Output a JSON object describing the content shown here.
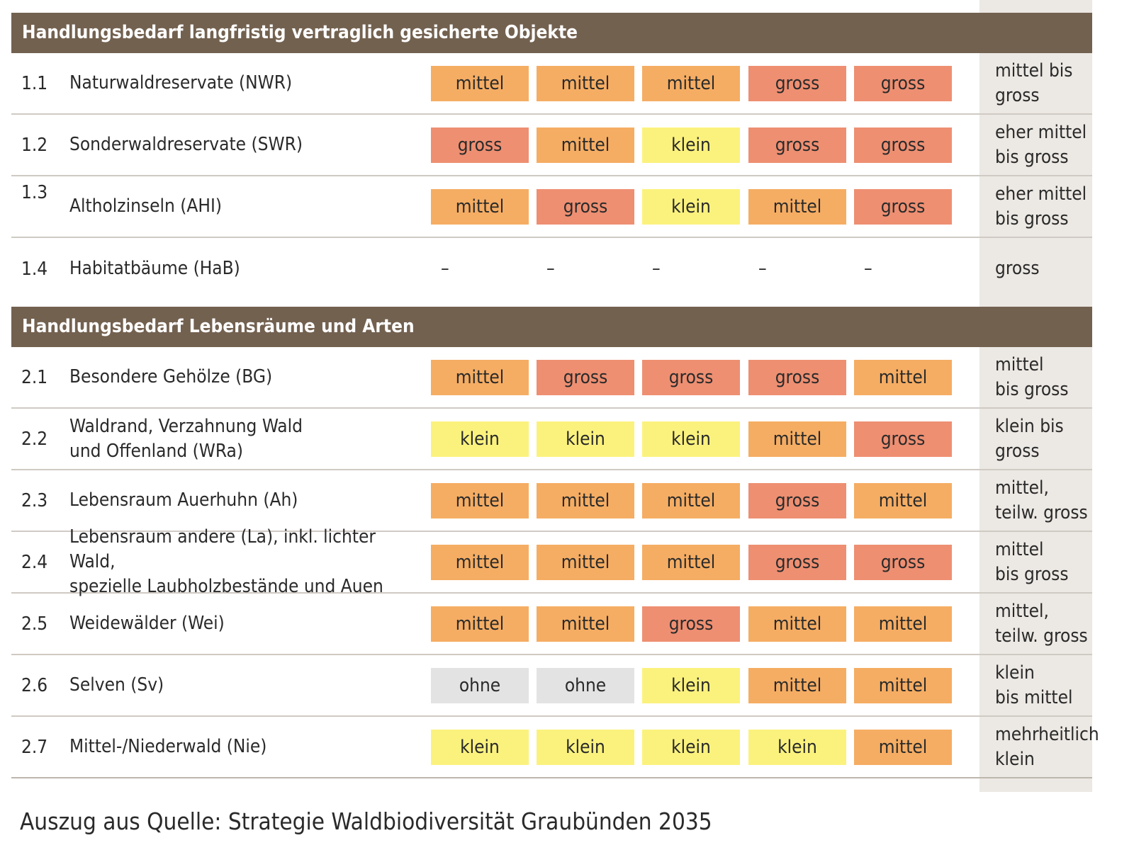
{
  "colors": {
    "header_bg": "#736150",
    "klein": "#fbf27e",
    "mittel": "#f5ad63",
    "gross": "#ee8f72",
    "ohne": "#e3e3e4",
    "summary_column_bg": "#ece8e3"
  },
  "sections": [
    {
      "title": "Handlungsbedarf langfristig vertraglich gesicherte Objekte",
      "rows": [
        {
          "num": "1.1",
          "label": "Naturwaldreservate (NWR)",
          "cells": [
            "mittel",
            "mittel",
            "mittel",
            "gross",
            "gross"
          ],
          "summary": "mittel bis\ngross"
        },
        {
          "num": "1.2",
          "label": "Sonderwaldreservate (SWR)",
          "cells": [
            "gross",
            "mittel",
            "klein",
            "gross",
            "gross"
          ],
          "summary": "eher mittel\nbis gross"
        },
        {
          "num": "1.3",
          "label": "Altholzinseln (AHI)",
          "cells": [
            "mittel",
            "gross",
            "klein",
            "mittel",
            "gross"
          ],
          "summary": "eher mittel\nbis gross"
        },
        {
          "num": "1.4",
          "label": "Habitatbäume (HaB)",
          "cells": [
            "–",
            "–",
            "–",
            "–",
            "–"
          ],
          "summary": "gross"
        }
      ]
    },
    {
      "title": "Handlungsbedarf Lebensräume und Arten",
      "rows": [
        {
          "num": "2.1",
          "label": "Besondere Gehölze (BG)",
          "cells": [
            "mittel",
            "gross",
            "gross",
            "gross",
            "mittel"
          ],
          "summary": "mittel\nbis gross"
        },
        {
          "num": "2.2",
          "label": "Waldrand, Verzahnung Wald\nund Offenland (WRa)",
          "cells": [
            "klein",
            "klein",
            "klein",
            "mittel",
            "gross"
          ],
          "summary": "klein bis\ngross"
        },
        {
          "num": "2.3",
          "label": "Lebensraum Auerhuhn (Ah)",
          "cells": [
            "mittel",
            "mittel",
            "mittel",
            "gross",
            "mittel"
          ],
          "summary": "mittel,\nteilw. gross"
        },
        {
          "num": "2.4",
          "label": "Lebensraum andere (La), inkl. lichter Wald,\nspezielle Laubholzbestände und Auen",
          "cells": [
            "mittel",
            "mittel",
            "mittel",
            "gross",
            "gross"
          ],
          "summary": "mittel\nbis gross"
        },
        {
          "num": "2.5",
          "label": "Weidewälder (Wei)",
          "cells": [
            "mittel",
            "mittel",
            "gross",
            "mittel",
            "mittel"
          ],
          "summary": "mittel,\nteilw. gross"
        },
        {
          "num": "2.6",
          "label": "Selven (Sv)",
          "cells": [
            "ohne",
            "ohne",
            "klein",
            "mittel",
            "mittel"
          ],
          "summary": "klein\nbis mittel"
        },
        {
          "num": "2.7",
          "label": "Mittel-/Niederwald (Nie)",
          "cells": [
            "klein",
            "klein",
            "klein",
            "klein",
            "mittel"
          ],
          "summary": "mehrheitlich\nklein"
        }
      ]
    }
  ],
  "source": "Auszug aus Quelle: Strategie Waldbiodiversität Graubünden 2035"
}
